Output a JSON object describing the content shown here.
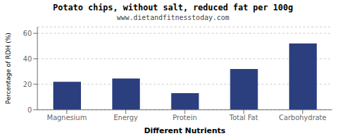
{
  "chart_data": {
    "type": "bar",
    "title": "Potato chips, without salt, reduced fat per 100g",
    "subtitle": "www.dietandfitnesstoday.com",
    "xlabel": "Different Nutrients",
    "ylabel": "Percentage of RDH (%)",
    "categories": [
      "Magnesium",
      "Energy",
      "Protein",
      "Total Fat",
      "Carbohydrate"
    ],
    "values": [
      22,
      24.5,
      13,
      32,
      52
    ],
    "color": "#2b3f7f",
    "ylim": [
      0,
      65
    ],
    "yticks": [
      0,
      20,
      40,
      60
    ],
    "grid": true
  }
}
